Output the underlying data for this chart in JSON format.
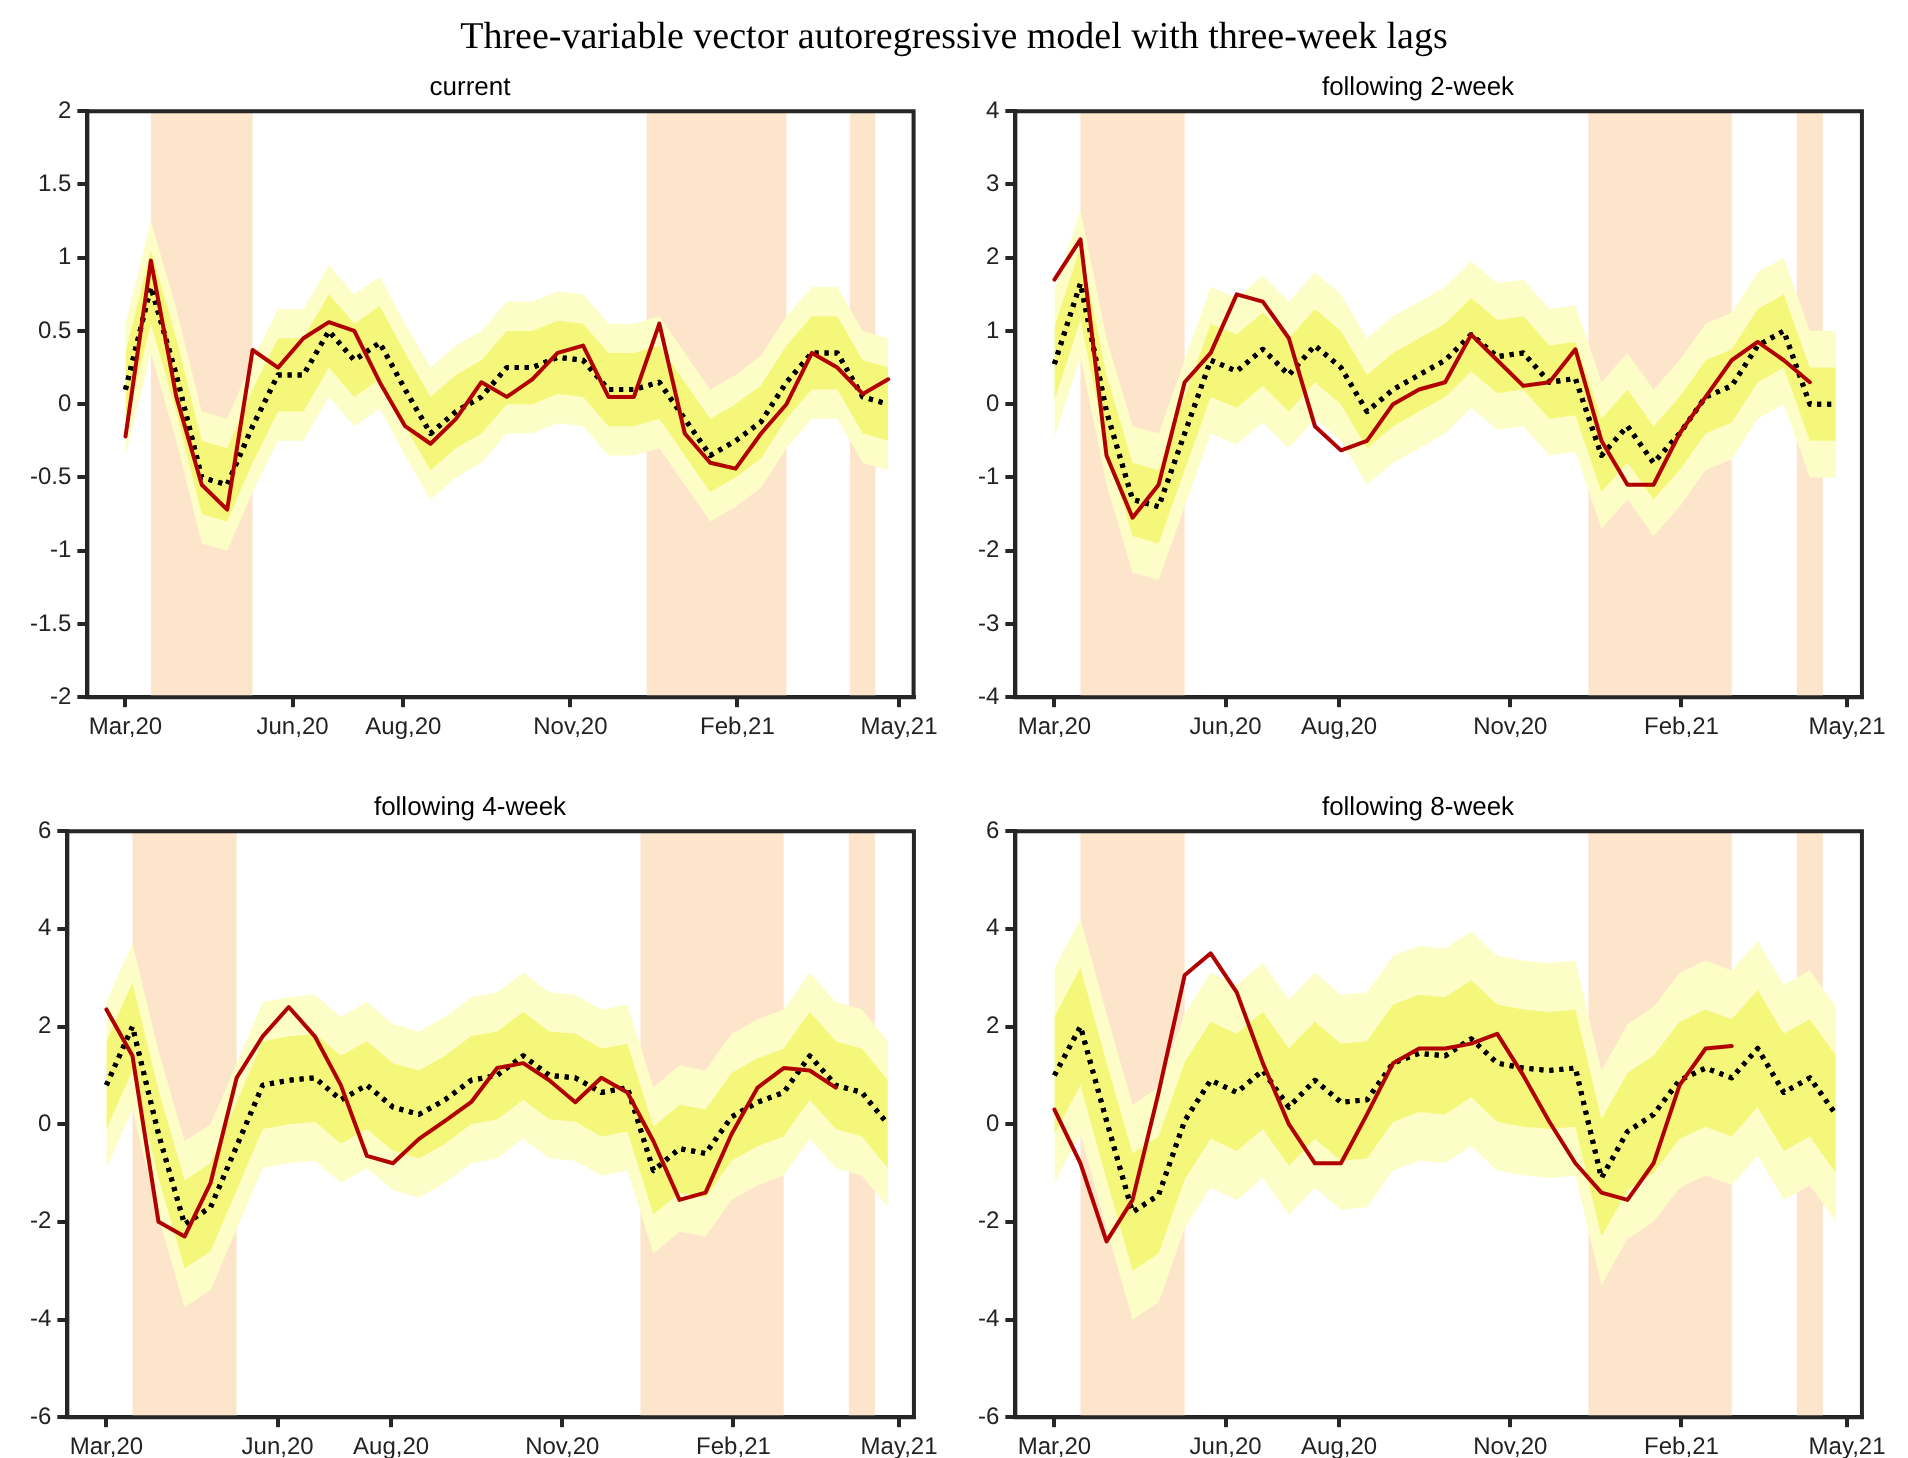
{
  "chart_data": [
    {
      "type": "line",
      "title": "current",
      "annotations": [
        "Three-variable vector autoregressive model with three-week lags"
      ],
      "x": [
        "2020-03-01",
        "2020-03-15",
        "2020-03-29",
        "2020-04-12",
        "2020-04-26",
        "2020-05-10",
        "2020-05-24",
        "2020-06-07",
        "2020-06-21",
        "2020-07-05",
        "2020-07-19",
        "2020-08-02",
        "2020-08-16",
        "2020-08-30",
        "2020-09-13",
        "2020-09-27",
        "2020-10-11",
        "2020-10-25",
        "2020-11-08",
        "2020-11-22",
        "2020-12-06",
        "2020-12-20",
        "2021-01-03",
        "2021-01-17",
        "2021-01-31",
        "2021-02-14",
        "2021-02-28",
        "2021-03-14",
        "2021-03-28",
        "2021-04-11",
        "2021-04-25"
      ],
      "xlim": [
        "2020-02-09",
        "2021-05-09"
      ],
      "xticks": [
        {
          "value": "2020-03-01",
          "label": "Mar,20"
        },
        {
          "value": "2020-06-01",
          "label": "Jun,20"
        },
        {
          "value": "2020-08-01",
          "label": "Aug,20"
        },
        {
          "value": "2020-11-01",
          "label": "Nov,20"
        },
        {
          "value": "2021-02-01",
          "label": "Feb,21"
        },
        {
          "value": "2021-05-01",
          "label": "May,21"
        }
      ],
      "ylim": [
        -2,
        2
      ],
      "yticks": [
        -2,
        -1.5,
        -1,
        -0.5,
        0,
        0.5,
        1,
        1.5,
        2
      ],
      "bands": [
        {
          "axis": "x",
          "from": "2020-03-15",
          "to": "2020-05-10",
          "color": "#fde5cc"
        },
        {
          "axis": "x",
          "from": "2020-12-13",
          "to": "2021-02-28",
          "color": "#fde5cc"
        },
        {
          "axis": "x",
          "from": "2021-04-04",
          "to": "2021-04-18",
          "color": "#fde5cc"
        }
      ],
      "series": [
        {
          "color": "#000000",
          "line_style": "dotted",
          "values": [
            0.1,
            0.8,
            0.2,
            -0.5,
            -0.55,
            -0.15,
            0.2,
            0.2,
            0.5,
            0.3,
            0.42,
            0.1,
            -0.2,
            -0.05,
            0.05,
            0.25,
            0.25,
            0.32,
            0.3,
            0.1,
            0.1,
            0.15,
            -0.1,
            -0.35,
            -0.25,
            -0.12,
            0.15,
            0.35,
            0.35,
            0.05,
            0
          ],
          "lower": [
            -0.35,
            0.35,
            -0.25,
            -0.95,
            -1,
            -0.6,
            -0.25,
            -0.25,
            0.05,
            -0.15,
            -0.03,
            -0.35,
            -0.65,
            -0.5,
            -0.4,
            -0.2,
            -0.2,
            -0.13,
            -0.15,
            -0.35,
            -0.35,
            -0.3,
            -0.55,
            -0.8,
            -0.7,
            -0.57,
            -0.3,
            -0.1,
            -0.1,
            -0.4,
            -0.45
          ],
          "upper": [
            0.55,
            1.25,
            0.65,
            -0.05,
            -0.1,
            0.3,
            0.65,
            0.65,
            0.95,
            0.75,
            0.87,
            0.55,
            0.25,
            0.4,
            0.5,
            0.7,
            0.7,
            0.77,
            0.75,
            0.55,
            0.55,
            0.6,
            0.35,
            0.1,
            0.2,
            0.33,
            0.6,
            0.8,
            0.8,
            0.5,
            0.45
          ]
        },
        {
          "color": "#000000",
          "line_style": "dotted",
          "values": [
            0.1,
            0.8,
            0.2,
            -0.5,
            -0.55,
            -0.15,
            0.2,
            0.2,
            0.5,
            0.3,
            0.42,
            0.1,
            -0.2,
            -0.05,
            0.05,
            0.25,
            0.25,
            0.32,
            0.3,
            0.1,
            0.1,
            0.15,
            -0.1,
            -0.35,
            -0.25,
            -0.12,
            0.15,
            0.35,
            0.35,
            0.05,
            0
          ],
          "lower": [
            -0.15,
            0.55,
            -0.05,
            -0.75,
            -0.8,
            -0.4,
            -0.05,
            -0.05,
            0.25,
            0.05,
            0.17,
            -0.15,
            -0.45,
            -0.3,
            -0.2,
            0,
            0,
            0.07,
            0.05,
            -0.15,
            -0.15,
            -0.1,
            -0.35,
            -0.6,
            -0.5,
            -0.37,
            -0.1,
            0.1,
            0.1,
            -0.2,
            -0.25
          ],
          "upper": [
            0.35,
            1.05,
            0.45,
            -0.25,
            -0.3,
            0.1,
            0.45,
            0.45,
            0.75,
            0.55,
            0.67,
            0.35,
            0.05,
            0.2,
            0.3,
            0.5,
            0.5,
            0.57,
            0.55,
            0.35,
            0.35,
            0.4,
            0.15,
            -0.1,
            0,
            0.13,
            0.4,
            0.6,
            0.6,
            0.3,
            0.25
          ]
        },
        {
          "color": "#b00000",
          "line_style": "solid",
          "values": [
            -0.22,
            0.98,
            0.05,
            -0.55,
            -0.72,
            0.37,
            0.25,
            0.45,
            0.56,
            0.5,
            0.15,
            -0.15,
            -0.27,
            -0.1,
            0.15,
            0.05,
            0.17,
            0.35,
            0.4,
            0.05,
            0.05,
            0.55,
            -0.2,
            -0.4,
            -0.44,
            -0.2,
            0,
            0.35,
            0.25,
            0.07,
            0.17
          ]
        }
      ]
    },
    {
      "type": "line",
      "title": "following 2-week",
      "x": [
        "2020-03-01",
        "2020-03-15",
        "2020-03-29",
        "2020-04-12",
        "2020-04-26",
        "2020-05-10",
        "2020-05-24",
        "2020-06-07",
        "2020-06-21",
        "2020-07-05",
        "2020-07-19",
        "2020-08-02",
        "2020-08-16",
        "2020-08-30",
        "2020-09-13",
        "2020-09-27",
        "2020-10-11",
        "2020-10-25",
        "2020-11-08",
        "2020-11-22",
        "2020-12-06",
        "2020-12-20",
        "2021-01-03",
        "2021-01-17",
        "2021-01-31",
        "2021-02-14",
        "2021-02-28",
        "2021-03-14",
        "2021-03-28",
        "2021-04-11",
        "2021-04-25"
      ],
      "xlim": [
        "2020-02-09",
        "2021-05-09"
      ],
      "xticks": [
        {
          "value": "2020-03-01",
          "label": "Mar,20"
        },
        {
          "value": "2020-06-01",
          "label": "Jun,20"
        },
        {
          "value": "2020-08-01",
          "label": "Aug,20"
        },
        {
          "value": "2020-11-01",
          "label": "Nov,20"
        },
        {
          "value": "2021-02-01",
          "label": "Feb,21"
        },
        {
          "value": "2021-05-01",
          "label": "May,21"
        }
      ],
      "ylim": [
        -4,
        4
      ],
      "yticks": [
        -4,
        -3,
        -2,
        -1,
        0,
        1,
        2,
        3,
        4
      ],
      "bands": [
        {
          "axis": "x",
          "from": "2020-03-15",
          "to": "2020-05-10",
          "color": "#fde5cc"
        },
        {
          "axis": "x",
          "from": "2020-12-13",
          "to": "2021-02-28",
          "color": "#fde5cc"
        },
        {
          "axis": "x",
          "from": "2021-04-04",
          "to": "2021-04-18",
          "color": "#fde5cc"
        }
      ],
      "series": [
        {
          "color": "#000000",
          "line_style": "dotted",
          "values": [
            0.55,
            1.65,
            -0.1,
            -1.3,
            -1.4,
            -0.4,
            0.6,
            0.45,
            0.75,
            0.4,
            0.8,
            0.5,
            -0.1,
            0.2,
            0.4,
            0.6,
            0.95,
            0.65,
            0.7,
            0.3,
            0.35,
            -0.7,
            -0.3,
            -0.8,
            -0.4,
            0.1,
            0.25,
            0.8,
            1,
            0,
            0
          ],
          "lower": [
            -0.45,
            0.65,
            -1.1,
            -2.3,
            -2.4,
            -1.4,
            -0.4,
            -0.55,
            -0.25,
            -0.6,
            -0.2,
            -0.5,
            -1.1,
            -0.8,
            -0.6,
            -0.4,
            -0.05,
            -0.35,
            -0.3,
            -0.7,
            -0.65,
            -1.7,
            -1.3,
            -1.8,
            -1.4,
            -0.9,
            -0.75,
            -0.2,
            0,
            -1,
            -1
          ],
          "upper": [
            1.55,
            2.65,
            0.9,
            -0.3,
            -0.4,
            0.6,
            1.6,
            1.45,
            1.75,
            1.4,
            1.8,
            1.5,
            0.9,
            1.2,
            1.4,
            1.6,
            1.95,
            1.65,
            1.7,
            1.3,
            1.35,
            0.3,
            0.7,
            0.2,
            0.6,
            1.1,
            1.25,
            1.8,
            2,
            1,
            1
          ]
        },
        {
          "color": "#000000",
          "line_style": "dotted",
          "values": [
            0.55,
            1.65,
            -0.1,
            -1.3,
            -1.4,
            -0.4,
            0.6,
            0.45,
            0.75,
            0.4,
            0.8,
            0.5,
            -0.1,
            0.2,
            0.4,
            0.6,
            0.95,
            0.65,
            0.7,
            0.3,
            0.35,
            -0.7,
            -0.3,
            -0.8,
            -0.4,
            0.1,
            0.25,
            0.8,
            1,
            0,
            0
          ],
          "lower": [
            0.05,
            1.15,
            -0.6,
            -1.8,
            -1.9,
            -0.9,
            0.1,
            -0.05,
            0.25,
            -0.1,
            0.3,
            0,
            -0.6,
            -0.3,
            -0.1,
            0.1,
            0.45,
            0.15,
            0.2,
            -0.2,
            -0.15,
            -1.2,
            -0.8,
            -1.3,
            -0.9,
            -0.4,
            -0.25,
            0.3,
            0.5,
            -0.5,
            -0.5
          ],
          "upper": [
            1.05,
            2.15,
            0.4,
            -0.8,
            -0.9,
            0.1,
            1.1,
            0.95,
            1.25,
            0.9,
            1.3,
            1,
            0.4,
            0.7,
            0.9,
            1.1,
            1.45,
            1.15,
            1.2,
            0.8,
            0.85,
            -0.2,
            0.2,
            -0.3,
            0.1,
            0.6,
            0.75,
            1.3,
            1.5,
            0.5,
            0.5
          ]
        },
        {
          "color": "#b00000",
          "line_style": "solid",
          "values": [
            1.7,
            2.25,
            -0.7,
            -1.55,
            -1.1,
            0.3,
            0.7,
            1.5,
            1.4,
            0.9,
            -0.3,
            -0.63,
            -0.5,
            0,
            0.2,
            0.3,
            0.95,
            0.6,
            0.25,
            0.3,
            0.75,
            -0.5,
            -1.1,
            -1.1,
            -0.4,
            0.1,
            0.6,
            0.85,
            0.6,
            0.3,
            null
          ]
        }
      ]
    },
    {
      "type": "line",
      "title": "following 4-week",
      "x": [
        "2020-03-01",
        "2020-03-15",
        "2020-03-29",
        "2020-04-12",
        "2020-04-26",
        "2020-05-10",
        "2020-05-24",
        "2020-06-07",
        "2020-06-21",
        "2020-07-05",
        "2020-07-19",
        "2020-08-02",
        "2020-08-16",
        "2020-08-30",
        "2020-09-13",
        "2020-09-27",
        "2020-10-11",
        "2020-10-25",
        "2020-11-08",
        "2020-11-22",
        "2020-12-06",
        "2020-12-20",
        "2021-01-03",
        "2021-01-17",
        "2021-01-31",
        "2021-02-14",
        "2021-02-28",
        "2021-03-14",
        "2021-03-28",
        "2021-04-11",
        "2021-04-25"
      ],
      "xlim": [
        "2020-02-09",
        "2021-05-09"
      ],
      "xticks": [
        {
          "value": "2020-03-01",
          "label": "Mar,20"
        },
        {
          "value": "2020-06-01",
          "label": "Jun,20"
        },
        {
          "value": "2020-08-01",
          "label": "Aug,20"
        },
        {
          "value": "2020-11-01",
          "label": "Nov,20"
        },
        {
          "value": "2021-02-01",
          "label": "Feb,21"
        },
        {
          "value": "2021-05-01",
          "label": "May,21"
        }
      ],
      "ylim": [
        -6,
        6
      ],
      "yticks": [
        -6,
        -4,
        -2,
        0,
        2,
        4,
        6
      ],
      "bands": [
        {
          "axis": "x",
          "from": "2020-03-15",
          "to": "2020-05-10",
          "color": "#fde5cc"
        },
        {
          "axis": "x",
          "from": "2020-12-13",
          "to": "2021-02-28",
          "color": "#fde5cc"
        },
        {
          "axis": "x",
          "from": "2021-04-04",
          "to": "2021-04-18",
          "color": "#fde5cc"
        }
      ],
      "series": [
        {
          "color": "#000000",
          "line_style": "dotted",
          "values": [
            0.8,
            2,
            -0.2,
            -2.05,
            -1.7,
            -0.45,
            0.8,
            0.9,
            0.95,
            0.5,
            0.8,
            0.35,
            0.2,
            0.5,
            0.9,
            1,
            1.4,
            1,
            0.95,
            0.65,
            0.75,
            -0.95,
            -0.5,
            -0.6,
            0.15,
            0.45,
            0.65,
            1.4,
            0.8,
            0.65,
            0
          ],
          "lower": [
            -0.9,
            0.3,
            -1.9,
            -3.75,
            -3.4,
            -2.15,
            -0.9,
            -0.8,
            -0.75,
            -1.2,
            -0.9,
            -1.35,
            -1.5,
            -1.2,
            -0.8,
            -0.7,
            -0.3,
            -0.7,
            -0.75,
            -1.05,
            -0.95,
            -2.65,
            -2.2,
            -2.3,
            -1.55,
            -1.25,
            -1.05,
            -0.3,
            -0.9,
            -1.05,
            -1.7
          ],
          "upper": [
            2.5,
            3.7,
            1.5,
            -0.35,
            0,
            1.25,
            2.5,
            2.6,
            2.65,
            2.2,
            2.5,
            2.05,
            1.9,
            2.2,
            2.6,
            2.7,
            3.1,
            2.7,
            2.65,
            2.35,
            2.45,
            0.75,
            1.2,
            1.1,
            1.85,
            2.15,
            2.35,
            3.1,
            2.5,
            2.35,
            1.7
          ]
        },
        {
          "color": "#000000",
          "line_style": "dotted",
          "values": [
            0.8,
            2,
            -0.2,
            -2.05,
            -1.7,
            -0.45,
            0.8,
            0.9,
            0.95,
            0.5,
            0.8,
            0.35,
            0.2,
            0.5,
            0.9,
            1,
            1.4,
            1,
            0.95,
            0.65,
            0.75,
            -0.95,
            -0.5,
            -0.6,
            0.15,
            0.45,
            0.65,
            1.4,
            0.8,
            0.65,
            0
          ],
          "lower": [
            -0.1,
            1.1,
            -1.1,
            -2.95,
            -2.6,
            -1.35,
            -0.1,
            0,
            0.05,
            -0.4,
            -0.1,
            -0.55,
            -0.7,
            -0.4,
            0,
            0.1,
            0.5,
            0.1,
            0.05,
            -0.25,
            -0.15,
            -1.85,
            -1.4,
            -1.5,
            -0.75,
            -0.45,
            -0.25,
            0.5,
            -0.1,
            -0.25,
            -0.9
          ],
          "upper": [
            1.7,
            2.9,
            0.7,
            -1.15,
            -0.8,
            0.45,
            1.7,
            1.8,
            1.85,
            1.4,
            1.7,
            1.25,
            1.1,
            1.4,
            1.8,
            1.9,
            2.3,
            1.9,
            1.85,
            1.55,
            1.65,
            -0.05,
            0.4,
            0.3,
            1.05,
            1.35,
            1.55,
            2.3,
            1.7,
            1.55,
            0.9
          ]
        },
        {
          "color": "#b00000",
          "line_style": "solid",
          "values": [
            2.35,
            1.4,
            -2,
            -2.3,
            -1.2,
            0.95,
            1.8,
            2.4,
            1.8,
            0.8,
            -0.65,
            -0.8,
            -0.3,
            0.07,
            0.45,
            1.15,
            1.25,
            0.9,
            0.45,
            0.95,
            0.65,
            -0.35,
            -1.55,
            -1.4,
            -0.2,
            0.75,
            1.15,
            1.1,
            0.75,
            null,
            null
          ]
        }
      ]
    },
    {
      "type": "line",
      "title": "following 8-week",
      "x": [
        "2020-03-01",
        "2020-03-15",
        "2020-03-29",
        "2020-04-12",
        "2020-04-26",
        "2020-05-10",
        "2020-05-24",
        "2020-06-07",
        "2020-06-21",
        "2020-07-05",
        "2020-07-19",
        "2020-08-02",
        "2020-08-16",
        "2020-08-30",
        "2020-09-13",
        "2020-09-27",
        "2020-10-11",
        "2020-10-25",
        "2020-11-08",
        "2020-11-22",
        "2020-12-06",
        "2020-12-20",
        "2021-01-03",
        "2021-01-17",
        "2021-01-31",
        "2021-02-14",
        "2021-02-28",
        "2021-03-14",
        "2021-03-28",
        "2021-04-11",
        "2021-04-25"
      ],
      "xlim": [
        "2020-02-09",
        "2021-05-09"
      ],
      "xticks": [
        {
          "value": "2020-03-01",
          "label": "Mar,20"
        },
        {
          "value": "2020-06-01",
          "label": "Jun,20"
        },
        {
          "value": "2020-08-01",
          "label": "Aug,20"
        },
        {
          "value": "2020-11-01",
          "label": "Nov,20"
        },
        {
          "value": "2021-02-01",
          "label": "Feb,21"
        },
        {
          "value": "2021-05-01",
          "label": "May,21"
        }
      ],
      "ylim": [
        -6,
        6
      ],
      "yticks": [
        -6,
        -4,
        -2,
        0,
        2,
        4,
        6
      ],
      "bands": [
        {
          "axis": "x",
          "from": "2020-03-15",
          "to": "2020-05-10",
          "color": "#fde5cc"
        },
        {
          "axis": "x",
          "from": "2020-12-13",
          "to": "2021-02-28",
          "color": "#fde5cc"
        },
        {
          "axis": "x",
          "from": "2021-04-04",
          "to": "2021-04-18",
          "color": "#fde5cc"
        }
      ],
      "series": [
        {
          "color": "#000000",
          "line_style": "dotted",
          "values": [
            1,
            2,
            0.07,
            -1.8,
            -1.45,
            0.07,
            0.9,
            0.65,
            1.1,
            0.35,
            0.9,
            0.45,
            0.5,
            1.25,
            1.45,
            1.4,
            1.75,
            1.25,
            1.15,
            1.1,
            1.15,
            -1.1,
            -0.15,
            0.2,
            0.9,
            1.15,
            0.95,
            1.55,
            0.65,
            0.95,
            0.2
          ],
          "lower": [
            -1.2,
            -0.2,
            -2.13,
            -4,
            -3.65,
            -2.13,
            -1.3,
            -1.55,
            -1.1,
            -1.85,
            -1.3,
            -1.75,
            -1.7,
            -0.95,
            -0.75,
            -0.8,
            -0.45,
            -0.95,
            -1.05,
            -1.1,
            -1.05,
            -3.3,
            -2.35,
            -2,
            -1.3,
            -1.05,
            -1.25,
            -0.65,
            -1.55,
            -1.25,
            -2
          ],
          "upper": [
            3.2,
            4.2,
            2.27,
            0.4,
            0.75,
            2.27,
            3.1,
            2.85,
            3.3,
            2.55,
            3.1,
            2.65,
            2.7,
            3.45,
            3.65,
            3.6,
            3.95,
            3.45,
            3.35,
            3.3,
            3.35,
            1.1,
            2.05,
            2.4,
            3.1,
            3.35,
            3.15,
            3.75,
            2.85,
            3.15,
            2.4
          ]
        },
        {
          "color": "#000000",
          "line_style": "dotted",
          "values": [
            1,
            2,
            0.07,
            -1.8,
            -1.45,
            0.07,
            0.9,
            0.65,
            1.1,
            0.35,
            0.9,
            0.45,
            0.5,
            1.25,
            1.45,
            1.4,
            1.75,
            1.25,
            1.15,
            1.1,
            1.15,
            -1.1,
            -0.15,
            0.2,
            0.9,
            1.15,
            0.95,
            1.55,
            0.65,
            0.95,
            0.2
          ],
          "lower": [
            -0.2,
            0.8,
            -1.13,
            -3,
            -2.65,
            -1.13,
            -0.3,
            -0.55,
            -0.1,
            -0.85,
            -0.3,
            -0.75,
            -0.7,
            0.05,
            0.25,
            0.2,
            0.55,
            0.05,
            -0.05,
            -0.1,
            -0.05,
            -2.3,
            -1.35,
            -1,
            -0.3,
            -0.05,
            -0.25,
            0.35,
            -0.55,
            -0.25,
            -1
          ],
          "upper": [
            2.2,
            3.2,
            1.27,
            -0.6,
            -0.25,
            1.27,
            2.1,
            1.85,
            2.3,
            1.55,
            2.1,
            1.65,
            1.7,
            2.45,
            2.65,
            2.6,
            2.95,
            2.45,
            2.35,
            2.3,
            2.35,
            0.1,
            1.05,
            1.4,
            2.1,
            2.35,
            2.15,
            2.75,
            1.85,
            2.15,
            1.4
          ]
        },
        {
          "color": "#b00000",
          "line_style": "solid",
          "values": [
            0.3,
            -0.8,
            -2.4,
            -1.55,
            0.65,
            3.05,
            3.5,
            2.7,
            1.25,
            0,
            -0.8,
            -0.8,
            0.2,
            1.25,
            1.55,
            1.55,
            1.65,
            1.85,
            1,
            0.05,
            -0.8,
            -1.4,
            -1.55,
            -0.8,
            0.8,
            1.55,
            1.6,
            null,
            null,
            null,
            null
          ]
        }
      ]
    }
  ]
}
